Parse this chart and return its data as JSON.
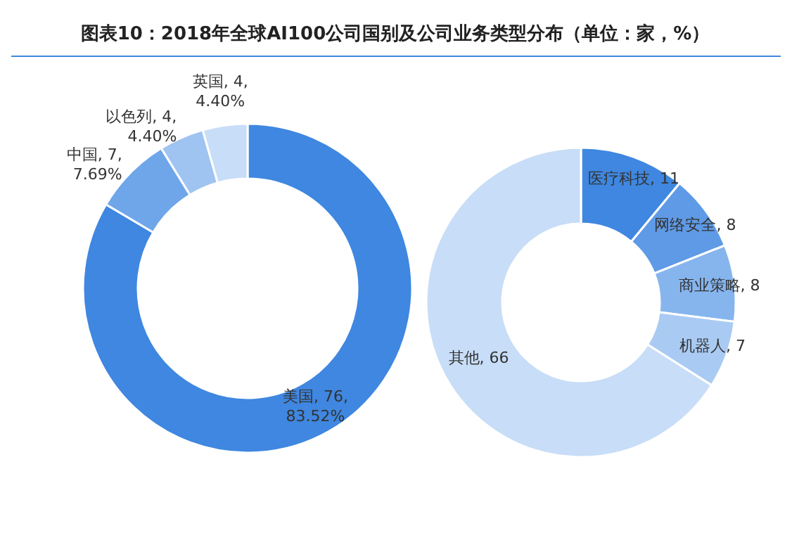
{
  "chart_data": [
    {
      "type": "donut",
      "title": "图表10：2018年全球AI100公司国别及公司业务类型分布（单位：家，%）",
      "categories": [
        "美国",
        "中国",
        "以色列",
        "英国"
      ],
      "values": [
        76,
        7,
        4,
        4
      ],
      "value_labels": [
        "76, 83.52%",
        "7, 7.69%",
        "4, 4.40%",
        "4, 4.40%"
      ],
      "colors": [
        "#3f87e0",
        "#6fa6ea",
        "#9fc4f1",
        "#c8ddf7"
      ]
    },
    {
      "type": "donut",
      "categories": [
        "医疗科技",
        "网络安全",
        "商业策略",
        "机器人",
        "其他"
      ],
      "values": [
        11,
        8,
        8,
        7,
        66
      ],
      "value_labels": [
        "11",
        "8",
        "8",
        "7",
        "66"
      ],
      "colors": [
        "#3f87e0",
        "#5f9ae6",
        "#86b5ee",
        "#a9cbf3",
        "#c8ddf7"
      ]
    }
  ]
}
